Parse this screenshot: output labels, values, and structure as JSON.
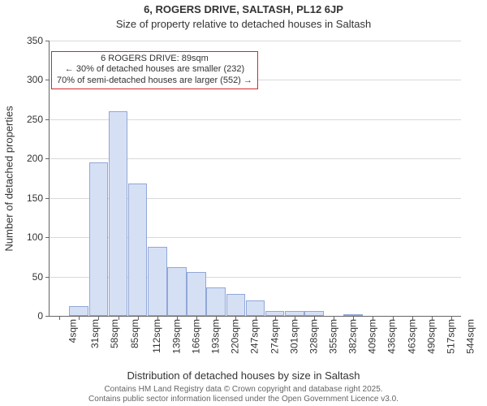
{
  "chart": {
    "type": "histogram",
    "title": "6, ROGERS DRIVE, SALTASH, PL12 6JP",
    "subtitle": "Size of property relative to detached houses in Saltash",
    "xlabel": "Distribution of detached houses by size in Saltash",
    "ylabel": "Number of detached properties",
    "title_fontsize": 13,
    "subtitle_fontsize": 13,
    "axis_label_fontsize": 13,
    "tick_fontsize": 12,
    "ylim": [
      0,
      350
    ],
    "ytick_step": 50,
    "yticks": [
      0,
      50,
      100,
      150,
      200,
      250,
      300,
      350
    ],
    "grid_color": "#d9d9d9",
    "axis_color": "#666666",
    "background_color": "#ffffff",
    "bar_fill": "#d6e0f5",
    "bar_border": "#90a7d6",
    "bar_width_ratio": 0.98,
    "xtick_step_sqm": 27,
    "xtick_start_sqm": 4,
    "xtick_count": 21,
    "xtick_unit": "sqm",
    "categories_sqm": [
      4,
      31,
      58,
      85,
      112,
      139,
      166,
      193,
      220,
      247,
      274,
      301,
      328,
      355,
      382,
      409,
      436,
      463,
      490,
      517,
      544
    ],
    "values": [
      0,
      12,
      195,
      260,
      168,
      88,
      62,
      56,
      36,
      28,
      20,
      6,
      6,
      6,
      0,
      2,
      0,
      0,
      0,
      0,
      0
    ],
    "callout": {
      "line1": "6 ROGERS DRIVE: 89sqm",
      "line2": "← 30% of detached houses are smaller (232)",
      "line3": "70% of semi-detached houses are larger (552) →",
      "border_color": "#d02a2a",
      "fontsize": 11,
      "anchor_sqm": 89,
      "top_value": 337
    },
    "footer": {
      "line1": "Contains HM Land Registry data © Crown copyright and database right 2025.",
      "line2": "Contains public sector information licensed under the Open Government Licence v3.0.",
      "fontsize": 10,
      "color": "#666666"
    }
  }
}
